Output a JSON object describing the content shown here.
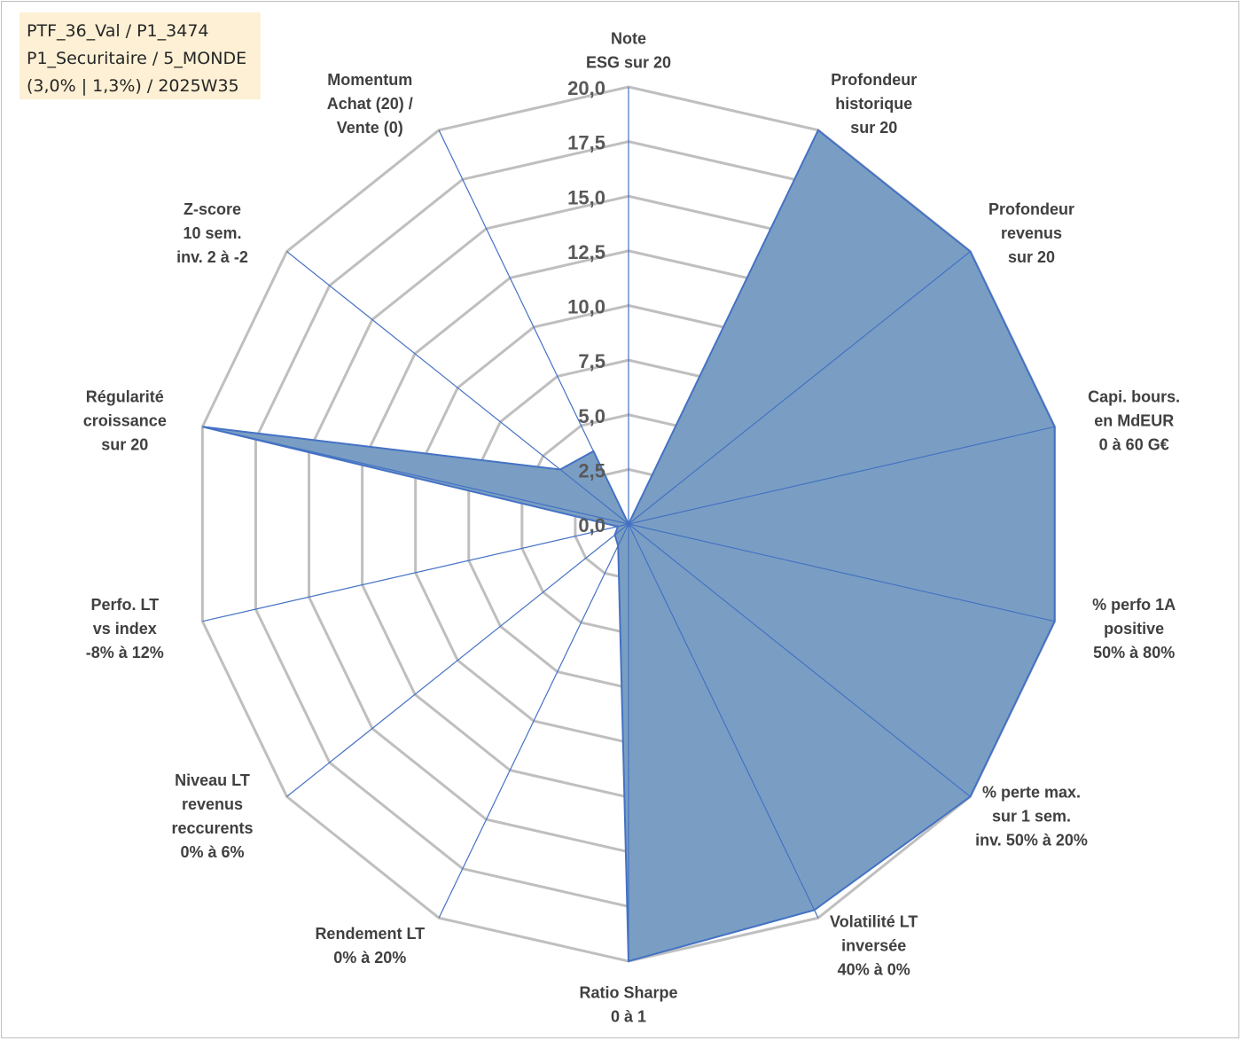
{
  "info_box": {
    "lines": [
      "PTF_36_Val / P1_3474",
      "P1_Securitaire / 5_MONDE",
      "(3,0% | 1,3%) / 2025W35"
    ]
  },
  "chart_data": {
    "type": "radar",
    "r_min": 0,
    "r_max": 20,
    "tick_values": [
      0,
      2.5,
      5,
      7.5,
      10,
      12.5,
      15,
      17.5,
      20
    ],
    "tick_labels": [
      "0,0",
      "2,5",
      "5,0",
      "7,5",
      "10,0",
      "12,5",
      "15,0",
      "17,5",
      "20,0"
    ],
    "grid": true,
    "colors": {
      "fill": "#7a9ec3",
      "line": "#4472c4",
      "grid": "#bfbfbf",
      "spoke": "#4472c4"
    },
    "axes": [
      {
        "label": [
          "Note",
          "ESG sur 20"
        ],
        "value": 0
      },
      {
        "label": [
          "Profondeur",
          "historique",
          "sur 20"
        ],
        "value": 20
      },
      {
        "label": [
          "Profondeur",
          "revenus",
          "sur 20"
        ],
        "value": 20
      },
      {
        "label": [
          "Capi. bours.",
          "en MdEUR",
          "0 à 60 G€"
        ],
        "value": 20
      },
      {
        "label": [
          "% perfo 1A",
          "positive",
          "50% à 80%"
        ],
        "value": 20
      },
      {
        "label": [
          "% perte max.",
          "sur 1 sem.",
          "inv. 50% à 20%"
        ],
        "value": 20
      },
      {
        "label": [
          "Volatilité LT",
          "inversée",
          "40% à 0%"
        ],
        "value": 19.6
      },
      {
        "label": [
          "Ratio Sharpe",
          "0 à 1"
        ],
        "value": 20
      },
      {
        "label": [
          "Rendement LT",
          "0% à 20%"
        ],
        "value": 1.1
      },
      {
        "label": [
          "Niveau LT",
          "revenus",
          "reccurents",
          "0% à 6%"
        ],
        "value": 0.8
      },
      {
        "label": [
          "Perfo. LT",
          "vs index",
          "-8% à 12%"
        ],
        "value": 0.5
      },
      {
        "label": [
          "Régularité",
          "croissance",
          "sur 20"
        ],
        "value": 20
      },
      {
        "label": [
          "Z-score",
          "10 sem.",
          "inv. 2 à -2"
        ],
        "value": 4.0
      },
      {
        "label": [
          "Momentum",
          "Achat (20) /",
          "Vente (0)"
        ],
        "value": 3.7
      }
    ]
  }
}
